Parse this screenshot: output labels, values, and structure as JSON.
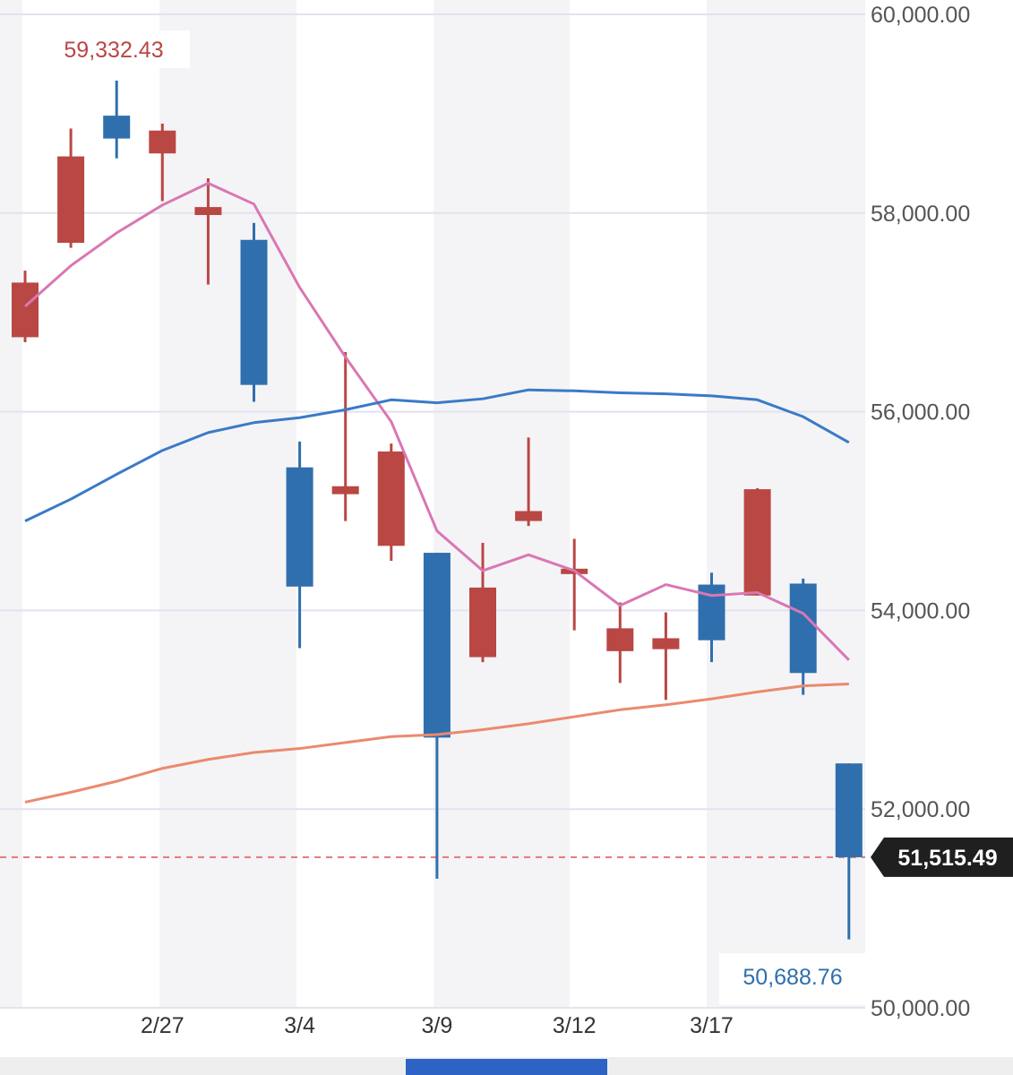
{
  "chart_data": {
    "type": "candlestick",
    "y_axis": {
      "min": 50000,
      "max": 60000,
      "ticks": [
        "60,000.00",
        "58,000.00",
        "56,000.00",
        "54,000.00",
        "52,000.00",
        "50,000.00"
      ],
      "tick_values": [
        60000,
        58000,
        56000,
        54000,
        52000,
        50000
      ],
      "position": "right",
      "grid": true
    },
    "x_axis": {
      "labels": [
        {
          "index": 3,
          "text": "2/27"
        },
        {
          "index": 6,
          "text": "3/4"
        },
        {
          "index": 9,
          "text": "3/9"
        },
        {
          "index": 12,
          "text": "3/12"
        },
        {
          "index": 15,
          "text": "3/17"
        }
      ]
    },
    "candles": [
      {
        "open": 56750,
        "high": 57420,
        "low": 56700,
        "close": 57300,
        "dir": "up"
      },
      {
        "open": 57700,
        "high": 58850,
        "low": 57650,
        "close": 58570,
        "dir": "up"
      },
      {
        "open": 58980,
        "high": 59332.43,
        "low": 58550,
        "close": 58750,
        "dir": "down"
      },
      {
        "open": 58600,
        "high": 58900,
        "low": 58120,
        "close": 58830,
        "dir": "up"
      },
      {
        "open": 57980,
        "high": 58350,
        "low": 57280,
        "close": 58060,
        "dir": "up"
      },
      {
        "open": 57730,
        "high": 57900,
        "low": 56100,
        "close": 56270,
        "dir": "down"
      },
      {
        "open": 55440,
        "high": 55700,
        "low": 53620,
        "close": 54240,
        "dir": "down"
      },
      {
        "open": 55170,
        "high": 56600,
        "low": 54900,
        "close": 55250,
        "dir": "up"
      },
      {
        "open": 54650,
        "high": 55680,
        "low": 54500,
        "close": 55600,
        "dir": "up"
      },
      {
        "open": 54580,
        "high": 54580,
        "low": 51300,
        "close": 52720,
        "dir": "down"
      },
      {
        "open": 53530,
        "high": 54680,
        "low": 53480,
        "close": 54230,
        "dir": "up"
      },
      {
        "open": 54900,
        "high": 55740,
        "low": 54850,
        "close": 55000,
        "dir": "up"
      },
      {
        "open": 54370,
        "high": 54720,
        "low": 53800,
        "close": 54420,
        "dir": "up"
      },
      {
        "open": 53590,
        "high": 54080,
        "low": 53270,
        "close": 53820,
        "dir": "up"
      },
      {
        "open": 53610,
        "high": 53980,
        "low": 53100,
        "close": 53720,
        "dir": "up"
      },
      {
        "open": 54260,
        "high": 54380,
        "low": 53480,
        "close": 53700,
        "dir": "down"
      },
      {
        "open": 54150,
        "high": 55230,
        "low": 54150,
        "close": 55220,
        "dir": "up"
      },
      {
        "open": 54270,
        "high": 54320,
        "low": 53150,
        "close": 53370,
        "dir": "down"
      },
      {
        "open": 52460,
        "high": 52460,
        "low": 50688.76,
        "close": 51515.49,
        "dir": "down"
      }
    ],
    "series": [
      {
        "kind": "ma-short",
        "color": "#d977b3",
        "values": [
          57060,
          57470,
          57800,
          58080,
          58300,
          58090,
          57250,
          56550,
          55900,
          54800,
          54400,
          54560,
          54400,
          54050,
          54260,
          54150,
          54180,
          53970,
          53500
        ]
      },
      {
        "kind": "ma-mid",
        "color": "#3a7ac8",
        "values": [
          54900,
          55120,
          55370,
          55610,
          55790,
          55890,
          55940,
          56020,
          56120,
          56090,
          56130,
          56220,
          56210,
          56190,
          56180,
          56160,
          56120,
          55950,
          55690
        ]
      },
      {
        "kind": "ma-long",
        "color": "#ea8a6e",
        "values": [
          52070,
          52170,
          52280,
          52410,
          52500,
          52570,
          52610,
          52670,
          52730,
          52750,
          52800,
          52860,
          52930,
          53000,
          53050,
          53110,
          53180,
          53240,
          53260
        ]
      }
    ],
    "high_annotation": {
      "text": "59,332.43",
      "index": 2
    },
    "low_annotation": {
      "text": "50,688.76",
      "index": 18
    },
    "current_price": {
      "value": 51515.49,
      "text": "51,515.49"
    },
    "colors": {
      "up": "#b94744",
      "down": "#2f6fad",
      "grid": "#e2e2f0",
      "band": "#f4f4f6",
      "current_line": "#e57873",
      "current_box": "#1f1f1f"
    }
  }
}
